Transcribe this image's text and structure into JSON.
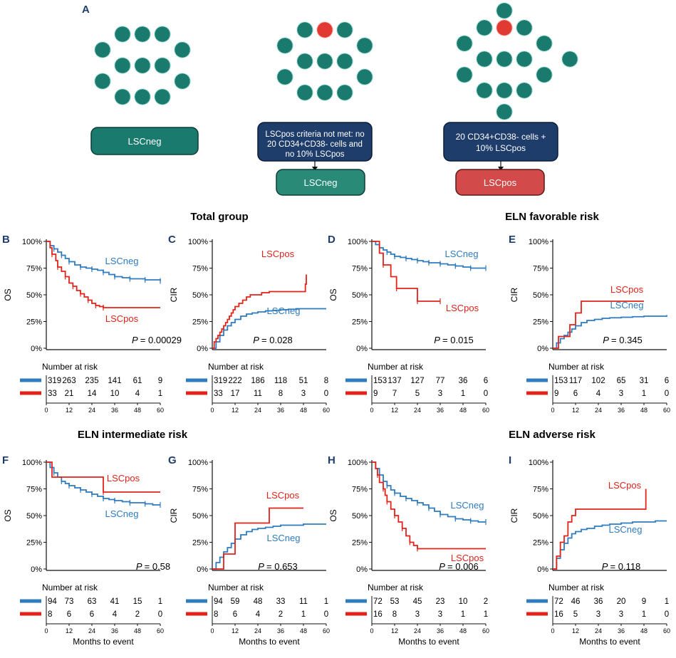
{
  "colors": {
    "neg": "#2f7bbf",
    "pos": "#e2231a",
    "teal": "#1b7a6e",
    "navy": "#1f3d6b",
    "red_box": "#d24a4a"
  },
  "panel_a": {
    "label": "A",
    "box1": "LSCneg",
    "box2_lines": [
      "LSCpos criteria not met: no",
      "20 CD34+CD38- cells and",
      "no 10% LSCpos"
    ],
    "box2_result": "LSCneg",
    "box3_lines": [
      "20 CD34+CD38- cells +",
      "10% LSCpos"
    ],
    "box3_result": "LSCpos"
  },
  "group_titles": [
    "Total group",
    "ELN favorable risk",
    "ELN intermediate risk",
    "ELN adverse risk"
  ],
  "risk_title": "Number at risk",
  "months_label": "Months to event",
  "chart_data": [
    {
      "type": "line",
      "panel": "B",
      "ylabel": "OS",
      "p_label": "P",
      "p_value": "= 0.00029",
      "yticks": [
        "0%",
        "25%",
        "50%",
        "75%",
        "100%"
      ],
      "xticks": [
        "0",
        "12",
        "24",
        "36",
        "48",
        "60"
      ],
      "xlim": [
        0,
        60
      ],
      "ylim": [
        0,
        100
      ],
      "series": [
        {
          "name": "LSCneg",
          "x": [
            0,
            2,
            4,
            6,
            8,
            10,
            12,
            15,
            18,
            21,
            24,
            27,
            30,
            33,
            36,
            40,
            44,
            48,
            52,
            56,
            60
          ],
          "y": [
            100,
            96,
            93,
            90,
            87,
            84,
            81,
            78,
            76,
            75,
            74,
            73,
            71,
            69,
            67,
            66,
            65,
            65,
            64,
            64,
            63
          ]
        },
        {
          "name": "LSCpos",
          "x": [
            0,
            2,
            3,
            5,
            6,
            8,
            10,
            12,
            14,
            16,
            18,
            20,
            22,
            24,
            26,
            28,
            30,
            60
          ],
          "y": [
            100,
            94,
            88,
            82,
            76,
            72,
            67,
            61,
            58,
            54,
            51,
            48,
            45,
            42,
            40,
            39,
            38,
            38
          ]
        }
      ],
      "risk": {
        "LSCneg": [
          "319",
          "263",
          "235",
          "141",
          "61",
          "9"
        ],
        "LSCpos": [
          "33",
          "21",
          "14",
          "10",
          "4",
          "1"
        ]
      }
    },
    {
      "type": "line",
      "panel": "C",
      "ylabel": "CIR",
      "p_label": "P",
      "p_value": "= 0.028",
      "yticks": [
        "0%",
        "25%",
        "50%",
        "75%",
        "100%"
      ],
      "xticks": [
        "0",
        "12",
        "24",
        "36",
        "48",
        "60"
      ],
      "xlim": [
        0,
        60
      ],
      "ylim": [
        0,
        100
      ],
      "series": [
        {
          "name": "LSCneg",
          "x": [
            0,
            2,
            4,
            6,
            8,
            10,
            12,
            15,
            18,
            21,
            24,
            28,
            32,
            36,
            40,
            44,
            48,
            52,
            56,
            60
          ],
          "y": [
            0,
            6,
            12,
            17,
            21,
            24,
            27,
            30,
            32,
            33,
            34,
            35,
            35.5,
            36,
            36.5,
            37,
            37,
            37,
            37,
            37
          ]
        },
        {
          "name": "LSCpos",
          "x": [
            0,
            1,
            2,
            3,
            4,
            5,
            6,
            7,
            8,
            9,
            10,
            11,
            12,
            14,
            16,
            18,
            20,
            24,
            26,
            28,
            30,
            32,
            36,
            40,
            44,
            48,
            49,
            49.5
          ],
          "y": [
            0,
            6,
            9,
            12,
            15,
            18,
            21,
            24,
            27,
            30,
            33,
            36,
            39,
            42,
            45,
            48,
            50,
            50,
            52,
            52,
            53,
            53,
            53,
            53,
            53,
            53,
            60,
            69
          ]
        }
      ],
      "risk": {
        "LSCneg": [
          "319",
          "222",
          "186",
          "118",
          "51",
          "8"
        ],
        "LSCpos": [
          "33",
          "17",
          "11",
          "8",
          "3",
          "0"
        ]
      }
    },
    {
      "type": "line",
      "panel": "D",
      "ylabel": "OS",
      "p_label": "P",
      "p_value": "= 0.015",
      "yticks": [
        "0%",
        "25%",
        "50%",
        "75%",
        "100%"
      ],
      "xticks": [
        "0",
        "12",
        "24",
        "36",
        "48",
        "60"
      ],
      "xlim": [
        0,
        60
      ],
      "ylim": [
        0,
        100
      ],
      "series": [
        {
          "name": "LSCneg",
          "x": [
            0,
            2,
            4,
            6,
            8,
            10,
            12,
            15,
            18,
            21,
            24,
            27,
            30,
            33,
            36,
            40,
            44,
            48,
            52,
            56,
            60
          ],
          "y": [
            100,
            97,
            94,
            92,
            90,
            88,
            86,
            85,
            84,
            83,
            82,
            81,
            80,
            80,
            79,
            78,
            77,
            76,
            75,
            75,
            75
          ]
        },
        {
          "name": "LSCpos",
          "x": [
            0,
            4,
            6,
            10,
            13,
            16,
            24,
            28,
            36
          ],
          "y": [
            100,
            89,
            78,
            67,
            56,
            56,
            44,
            44,
            44
          ]
        }
      ],
      "risk": {
        "LSCneg": [
          "153",
          "137",
          "127",
          "77",
          "36",
          "6"
        ],
        "LSCpos": [
          "9",
          "7",
          "5",
          "3",
          "1",
          "0"
        ]
      }
    },
    {
      "type": "line",
      "panel": "E",
      "ylabel": "CIR",
      "p_label": "P",
      "p_value": "= 0.345",
      "yticks": [
        "0%",
        "25%",
        "50%",
        "75%",
        "100%"
      ],
      "xticks": [
        "0",
        "12",
        "24",
        "36",
        "48",
        "60"
      ],
      "xlim": [
        0,
        60
      ],
      "ylim": [
        0,
        100
      ],
      "series": [
        {
          "name": "LSCneg",
          "x": [
            0,
            2,
            4,
            6,
            8,
            10,
            12,
            15,
            18,
            22,
            26,
            30,
            36,
            42,
            48,
            54,
            60
          ],
          "y": [
            0,
            5,
            9,
            12,
            15,
            18,
            21,
            24,
            26,
            27,
            28,
            28.5,
            29,
            29.5,
            30,
            30,
            31
          ]
        },
        {
          "name": "LSCpos",
          "x": [
            0,
            3,
            6,
            9,
            12,
            15,
            48
          ],
          "y": [
            0,
            11,
            11,
            22,
            33,
            44,
            44
          ]
        }
      ],
      "risk": {
        "LSCneg": [
          "153",
          "117",
          "102",
          "65",
          "31",
          "6"
        ],
        "LSCpos": [
          "9",
          "6",
          "4",
          "3",
          "1",
          "0"
        ]
      }
    },
    {
      "type": "line",
      "panel": "F",
      "ylabel": "OS",
      "p_label": "P",
      "p_value": "= 0.58",
      "yticks": [
        "0%",
        "25%",
        "50%",
        "75%",
        "100%"
      ],
      "xticks": [
        "0",
        "12",
        "24",
        "36",
        "48",
        "60"
      ],
      "xlim": [
        0,
        60
      ],
      "ylim": [
        0,
        100
      ],
      "series": [
        {
          "name": "LSCneg",
          "x": [
            0,
            2,
            4,
            6,
            8,
            10,
            12,
            15,
            18,
            21,
            24,
            27,
            30,
            33,
            36,
            40,
            44,
            48,
            52,
            56,
            60
          ],
          "y": [
            100,
            95,
            90,
            86,
            82,
            80,
            78,
            76,
            74,
            72,
            70,
            68,
            66,
            65,
            64,
            63,
            62,
            62,
            61,
            60,
            60
          ]
        },
        {
          "name": "LSCpos",
          "x": [
            0,
            3,
            30,
            60
          ],
          "y": [
            100,
            86,
            72,
            72
          ]
        }
      ],
      "risk": {
        "LSCneg": [
          "94",
          "73",
          "63",
          "41",
          "15",
          "1"
        ],
        "LSCpos": [
          "8",
          "6",
          "6",
          "4",
          "2",
          "0"
        ]
      }
    },
    {
      "type": "line",
      "panel": "G",
      "ylabel": "CIR",
      "p_label": "P",
      "p_value": "= 0.653",
      "yticks": [
        "0%",
        "25%",
        "50%",
        "75%",
        "100%"
      ],
      "xticks": [
        "0",
        "12",
        "24",
        "36",
        "48",
        "60"
      ],
      "xlim": [
        0,
        60
      ],
      "ylim": [
        0,
        100
      ],
      "series": [
        {
          "name": "LSCneg",
          "x": [
            0,
            2,
            4,
            6,
            8,
            10,
            12,
            15,
            18,
            21,
            24,
            28,
            32,
            36,
            40,
            48,
            60
          ],
          "y": [
            0,
            6,
            11,
            16,
            20,
            24,
            28,
            32,
            35,
            37,
            38,
            39,
            40,
            41,
            41,
            42,
            42
          ]
        },
        {
          "name": "LSCpos",
          "x": [
            0,
            6,
            12,
            30,
            48
          ],
          "y": [
            0,
            14,
            43,
            57,
            57
          ]
        }
      ],
      "risk": {
        "LSCneg": [
          "94",
          "59",
          "48",
          "33",
          "11",
          "1"
        ],
        "LSCpos": [
          "8",
          "6",
          "4",
          "2",
          "1",
          "0"
        ]
      }
    },
    {
      "type": "line",
      "panel": "H",
      "ylabel": "OS",
      "p_label": "P",
      "p_value": "= 0.006",
      "yticks": [
        "0%",
        "25%",
        "50%",
        "75%",
        "100%"
      ],
      "xticks": [
        "0",
        "12",
        "24",
        "36",
        "48",
        "60"
      ],
      "xlim": [
        0,
        60
      ],
      "ylim": [
        0,
        100
      ],
      "series": [
        {
          "name": "LSCneg",
          "x": [
            0,
            2,
            4,
            6,
            8,
            10,
            12,
            15,
            18,
            21,
            24,
            27,
            30,
            33,
            36,
            40,
            44,
            48,
            52,
            56,
            60
          ],
          "y": [
            100,
            94,
            88,
            82,
            78,
            74,
            71,
            68,
            66,
            64,
            62,
            60,
            57,
            54,
            51,
            49,
            47,
            46,
            45,
            44,
            44
          ]
        },
        {
          "name": "LSCpos",
          "x": [
            0,
            2,
            3,
            4,
            6,
            7,
            8,
            10,
            12,
            14,
            16,
            18,
            20,
            22,
            24,
            60
          ],
          "y": [
            100,
            94,
            88,
            81,
            75,
            69,
            63,
            56,
            50,
            44,
            38,
            31,
            25,
            22,
            19,
            19
          ]
        }
      ],
      "risk": {
        "LSCneg": [
          "72",
          "53",
          "45",
          "23",
          "10",
          "2"
        ],
        "LSCpos": [
          "16",
          "8",
          "3",
          "3",
          "1",
          "1"
        ]
      }
    },
    {
      "type": "line",
      "panel": "I",
      "ylabel": "CIR",
      "p_label": "P",
      "p_value": "= 0.118",
      "yticks": [
        "0%",
        "25%",
        "50%",
        "75%",
        "100%"
      ],
      "xticks": [
        "0",
        "12",
        "24",
        "36",
        "48",
        "60"
      ],
      "xlim": [
        0,
        60
      ],
      "ylim": [
        0,
        100
      ],
      "series": [
        {
          "name": "LSCneg",
          "x": [
            0,
            2,
            4,
            6,
            8,
            10,
            12,
            15,
            18,
            22,
            26,
            30,
            36,
            42,
            48,
            54,
            60
          ],
          "y": [
            0,
            10,
            18,
            24,
            29,
            33,
            35,
            37,
            38,
            40,
            41,
            42,
            43,
            44,
            44,
            45,
            45
          ]
        },
        {
          "name": "LSCpos",
          "x": [
            0,
            2,
            4,
            6,
            8,
            10,
            12,
            48,
            49
          ],
          "y": [
            0,
            12,
            25,
            31,
            44,
            50,
            56,
            56,
            75
          ]
        }
      ],
      "risk": {
        "LSCneg": [
          "72",
          "46",
          "36",
          "20",
          "9",
          "1"
        ],
        "LSCpos": [
          "16",
          "5",
          "3",
          "3",
          "1",
          "0"
        ]
      }
    }
  ]
}
